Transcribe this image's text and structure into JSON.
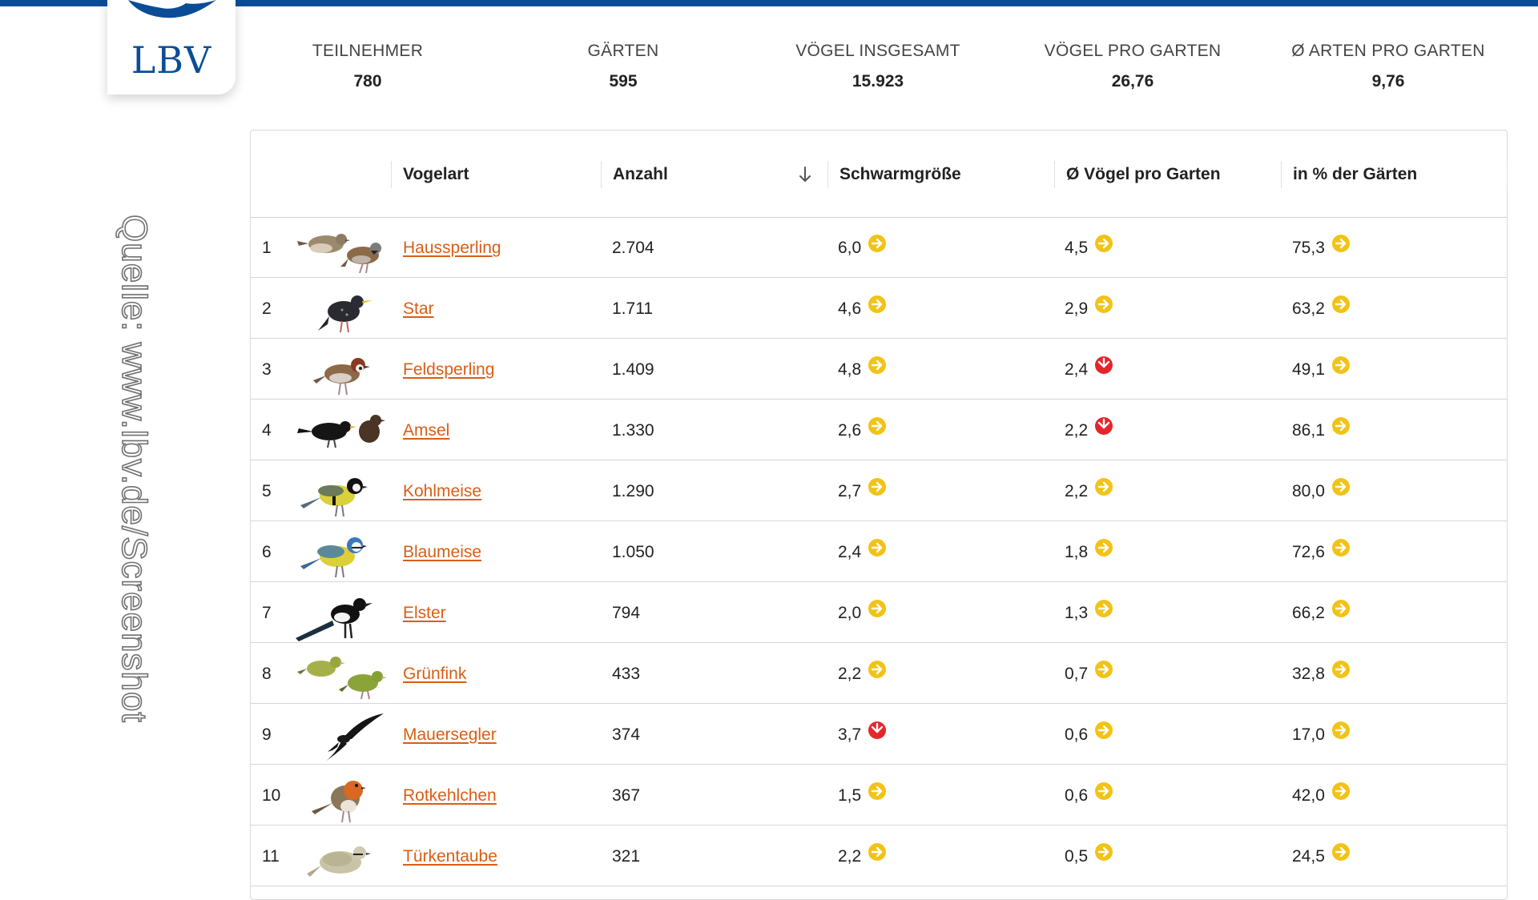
{
  "brand": {
    "logo_text": "LBV",
    "color": "#0a4d96"
  },
  "source_label": "Quelle: www.lbv.de/Screenshot",
  "stats": [
    {
      "label": "TEILNEHMER",
      "value": "780"
    },
    {
      "label": "GÄRTEN",
      "value": "595"
    },
    {
      "label": "VÖGEL INSGESAMT",
      "value": "15.923"
    },
    {
      "label": "VÖGEL PRO GARTEN",
      "value": "26,76"
    },
    {
      "label": "Ø ARTEN PRO GARTEN",
      "value": "9,76"
    }
  ],
  "table": {
    "headers": {
      "species": "Vogelart",
      "count": "Anzahl",
      "flock": "Schwarmgröße",
      "per_garden": "Ø Vögel pro Garten",
      "pct_gardens": "in % der Gärten"
    },
    "sort_icon": "arrow-down-icon",
    "trend_colors": {
      "same": "#f2c316",
      "down": "#e3262b"
    },
    "rows": [
      {
        "rank": "1",
        "name": "Haussperling",
        "bird": "sparrow",
        "count": "2.704",
        "flock": "6,0",
        "flock_trend": "same",
        "per_garden": "4,5",
        "per_garden_trend": "same",
        "pct": "75,3",
        "pct_trend": "same"
      },
      {
        "rank": "2",
        "name": "Star",
        "bird": "starling",
        "count": "1.711",
        "flock": "4,6",
        "flock_trend": "same",
        "per_garden": "2,9",
        "per_garden_trend": "same",
        "pct": "63,2",
        "pct_trend": "same"
      },
      {
        "rank": "3",
        "name": "Feldsperling",
        "bird": "tree-sparrow",
        "count": "1.409",
        "flock": "4,8",
        "flock_trend": "same",
        "per_garden": "2,4",
        "per_garden_trend": "down",
        "pct": "49,1",
        "pct_trend": "same"
      },
      {
        "rank": "4",
        "name": "Amsel",
        "bird": "blackbird",
        "count": "1.330",
        "flock": "2,6",
        "flock_trend": "same",
        "per_garden": "2,2",
        "per_garden_trend": "down",
        "pct": "86,1",
        "pct_trend": "same"
      },
      {
        "rank": "5",
        "name": "Kohlmeise",
        "bird": "great-tit",
        "count": "1.290",
        "flock": "2,7",
        "flock_trend": "same",
        "per_garden": "2,2",
        "per_garden_trend": "same",
        "pct": "80,0",
        "pct_trend": "same"
      },
      {
        "rank": "6",
        "name": "Blaumeise",
        "bird": "blue-tit",
        "count": "1.050",
        "flock": "2,4",
        "flock_trend": "same",
        "per_garden": "1,8",
        "per_garden_trend": "same",
        "pct": "72,6",
        "pct_trend": "same"
      },
      {
        "rank": "7",
        "name": "Elster",
        "bird": "magpie",
        "count": "794",
        "flock": "2,0",
        "flock_trend": "same",
        "per_garden": "1,3",
        "per_garden_trend": "same",
        "pct": "66,2",
        "pct_trend": "same"
      },
      {
        "rank": "8",
        "name": "Grünfink",
        "bird": "greenfinch",
        "count": "433",
        "flock": "2,2",
        "flock_trend": "same",
        "per_garden": "0,7",
        "per_garden_trend": "same",
        "pct": "32,8",
        "pct_trend": "same"
      },
      {
        "rank": "9",
        "name": "Mauersegler",
        "bird": "swift",
        "count": "374",
        "flock": "3,7",
        "flock_trend": "down",
        "per_garden": "0,6",
        "per_garden_trend": "same",
        "pct": "17,0",
        "pct_trend": "same"
      },
      {
        "rank": "10",
        "name": "Rotkehlchen",
        "bird": "robin",
        "count": "367",
        "flock": "1,5",
        "flock_trend": "same",
        "per_garden": "0,6",
        "per_garden_trend": "same",
        "pct": "42,0",
        "pct_trend": "same"
      },
      {
        "rank": "11",
        "name": "Türkentaube",
        "bird": "collared-dove",
        "count": "321",
        "flock": "2,2",
        "flock_trend": "same",
        "per_garden": "0,5",
        "per_garden_trend": "same",
        "pct": "24,5",
        "pct_trend": "same"
      }
    ]
  }
}
